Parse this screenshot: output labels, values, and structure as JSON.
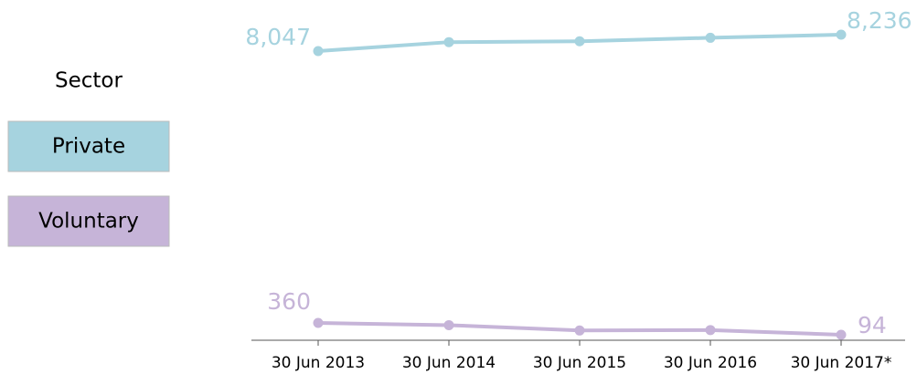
{
  "chart_data": {
    "type": "line",
    "legend_title": "Sector",
    "categories": [
      "30 Jun 2013",
      "30 Jun 2014",
      "30 Jun 2015",
      "30 Jun 2016",
      "30 Jun 2017*"
    ],
    "series": [
      {
        "name": "Private",
        "color": "#a6d3df",
        "values": [
          8047,
          8150,
          8160,
          8200,
          8236
        ],
        "value_labels": [
          "8,047",
          null,
          null,
          null,
          "8,236"
        ]
      },
      {
        "name": "Voluntary",
        "color": "#c6b4d8",
        "values": [
          360,
          310,
          190,
          200,
          94
        ],
        "value_labels": [
          "360",
          null,
          null,
          null,
          "94"
        ]
      }
    ]
  }
}
